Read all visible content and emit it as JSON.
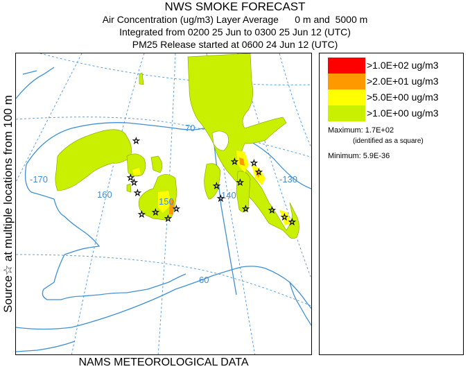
{
  "title": {
    "main": "NWS SMOKE FORECAST",
    "line1": "Air Concentration (ug/m3) Layer Average      0 m and  5000 m",
    "line2": "Integrated from 0200 25 Jun to 0300 25 Jun 12 (UTC)",
    "line3": "PM25 Release started at 0600 24 Jun 12 (UTC)"
  },
  "side_label": "Source☆ at multiple locations from 100 m",
  "footer": "NAMS METEOROLOGICAL DATA",
  "map": {
    "grid_labels": {
      "lon_170": "-170",
      "lon_160": "160",
      "lon_150": "150",
      "lon_140": "140",
      "lon_130": "-130",
      "lat_70": "70",
      "lat_60": "60"
    },
    "colors": {
      "coast": "#3d8fd6",
      "grid": "#5aa0dc",
      "level1": "#c8f000",
      "level2": "#ffff00",
      "level3": "#ff9900",
      "level4": "#ff0000"
    }
  },
  "legend": {
    "items": [
      {
        "label": ">1.0E+02 ug/m3",
        "color": "#ff0000"
      },
      {
        "label": ">2.0E+01 ug/m3",
        "color": "#ff9900"
      },
      {
        "label": ">5.0E+00 ug/m3",
        "color": "#ffff00"
      },
      {
        "label": ">1.0E+00 ug/m3",
        "color": "#c8f000"
      }
    ],
    "maximum": "Maximum: 1.7E+02",
    "maximum_note": "(identified as a square)",
    "minimum": "Minimum: 5.9E-36"
  }
}
